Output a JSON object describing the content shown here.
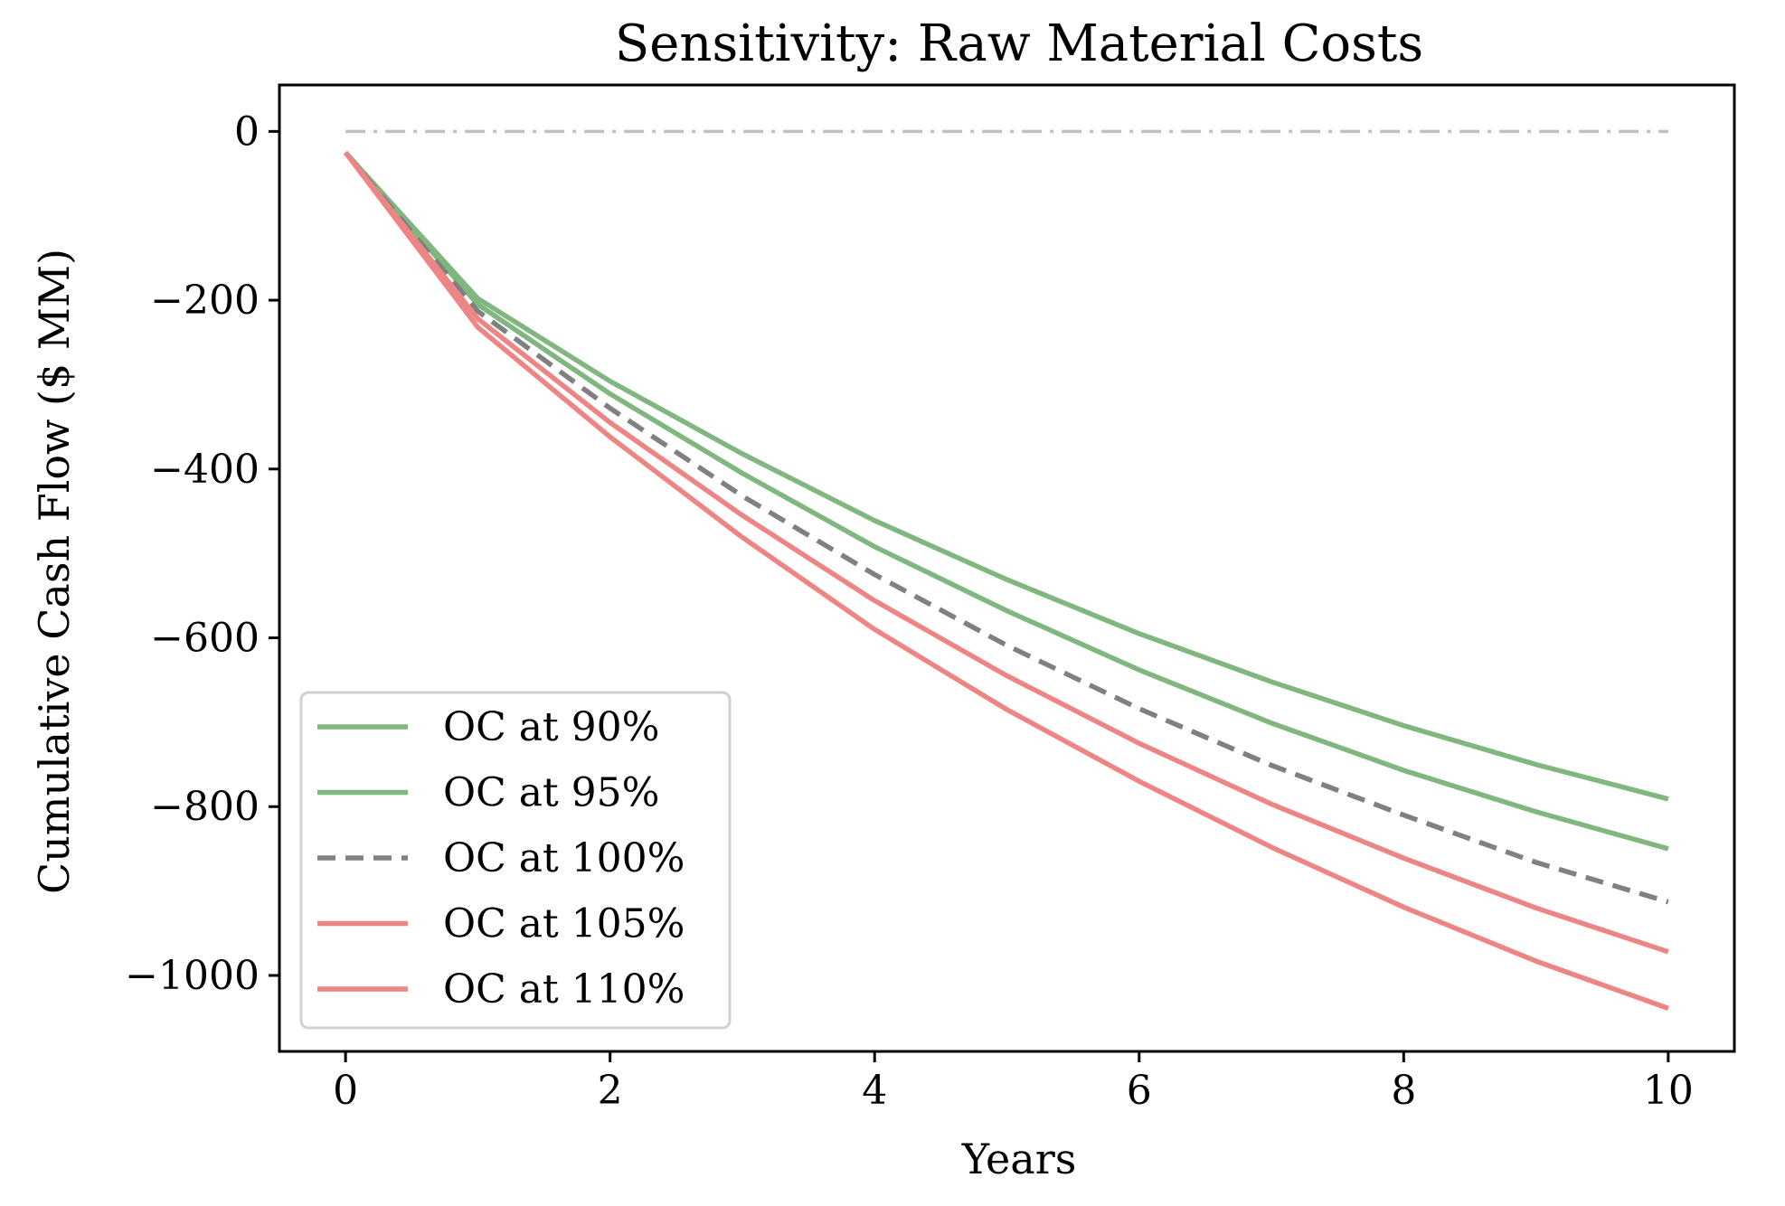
{
  "chart_data": {
    "type": "line",
    "title": "Sensitivity: Raw Material Costs",
    "xlabel": "Years",
    "ylabel": "Cumulative Cash Flow ($ MM)",
    "xlim": [
      -0.5,
      10.5
    ],
    "ylim": [
      -1090,
      55
    ],
    "xticks": [
      0,
      2,
      4,
      6,
      8,
      10
    ],
    "xtick_labels": [
      "0",
      "2",
      "4",
      "6",
      "8",
      "10"
    ],
    "yticks": [
      0,
      -200,
      -400,
      -600,
      -800,
      -1000
    ],
    "ytick_labels": [
      "0",
      "−200",
      "−400",
      "−600",
      "−800",
      "−1000"
    ],
    "grid": false,
    "legend_position": "lower-left",
    "x": [
      0,
      1,
      2,
      3,
      4,
      5,
      6,
      7,
      8,
      9,
      10
    ],
    "reference_line": {
      "y": 0,
      "x_range": [
        0,
        10
      ],
      "color": "#c0c0c0",
      "style": "dashdot"
    },
    "series": [
      {
        "name": "OC at 90%",
        "color": "#7fb77e",
        "style": "solid",
        "values": [
          -25,
          -198,
          -296,
          -382,
          -461,
          -531,
          -595,
          -652,
          -704,
          -750,
          -791
        ]
      },
      {
        "name": "OC at 95%",
        "color": "#7fb77e",
        "style": "solid",
        "values": [
          -25,
          -205,
          -311,
          -405,
          -492,
          -568,
          -638,
          -701,
          -757,
          -806,
          -850
        ]
      },
      {
        "name": "OC at 100%",
        "color": "#808080",
        "style": "dashed",
        "values": [
          -25,
          -213,
          -328,
          -432,
          -525,
          -609,
          -684,
          -751,
          -810,
          -866,
          -913
        ]
      },
      {
        "name": "OC at 105%",
        "color": "#ee8585",
        "style": "solid",
        "values": [
          -25,
          -222,
          -345,
          -455,
          -556,
          -645,
          -725,
          -797,
          -861,
          -920,
          -972
        ]
      },
      {
        "name": "OC at 110%",
        "color": "#ee8585",
        "style": "solid",
        "values": [
          -25,
          -232,
          -362,
          -481,
          -590,
          -685,
          -770,
          -848,
          -919,
          -983,
          -1039
        ]
      }
    ]
  }
}
